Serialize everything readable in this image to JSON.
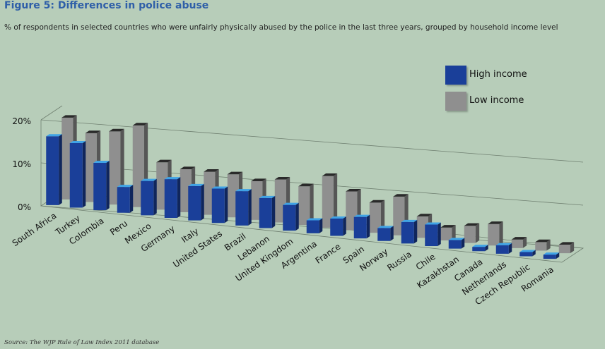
{
  "header": {
    "title": "Figure 5:  Differences in police abuse",
    "subtitle": "% of respondents in selected countries who were unfairly physically abused by the police in the last three years, grouped by household income level"
  },
  "footer": {
    "source": "Source: The WJP Rule of Law Index 2011 database"
  },
  "legend": {
    "high_label": "High income",
    "low_label": "Low income",
    "high_color": "#1a3f99",
    "low_color": "#8f8f8f"
  },
  "chart_data": {
    "type": "bar",
    "style": "3d-clustered",
    "categories": [
      "South Africa",
      "Turkey",
      "Colombia",
      "Peru",
      "Mexico",
      "Germany",
      "Italy",
      "United States",
      "Brazil",
      "Lebanon",
      "United Kingdom",
      "Argentina",
      "France",
      "Spain",
      "Norway",
      "Russia",
      "Chile",
      "Kazakhstan",
      "Canada",
      "Netherlands",
      "Czech Republic",
      "Romania"
    ],
    "series": [
      {
        "name": "High income",
        "values": [
          16,
          15,
          11,
          6,
          8,
          9,
          8,
          8,
          8,
          7,
          6,
          3,
          4,
          5,
          3,
          5,
          5,
          2,
          1,
          2,
          1,
          1
        ]
      },
      {
        "name": "Low income",
        "values": [
          19,
          16,
          17,
          19,
          11,
          10,
          10,
          10,
          9,
          10,
          9,
          12,
          9,
          7,
          9,
          5,
          3,
          4,
          5,
          2,
          2,
          2
        ]
      }
    ],
    "ylim": [
      0,
      20
    ],
    "yticks": [
      "0%",
      "10%",
      "20%"
    ],
    "grid": true,
    "legend_position": "top-right"
  }
}
